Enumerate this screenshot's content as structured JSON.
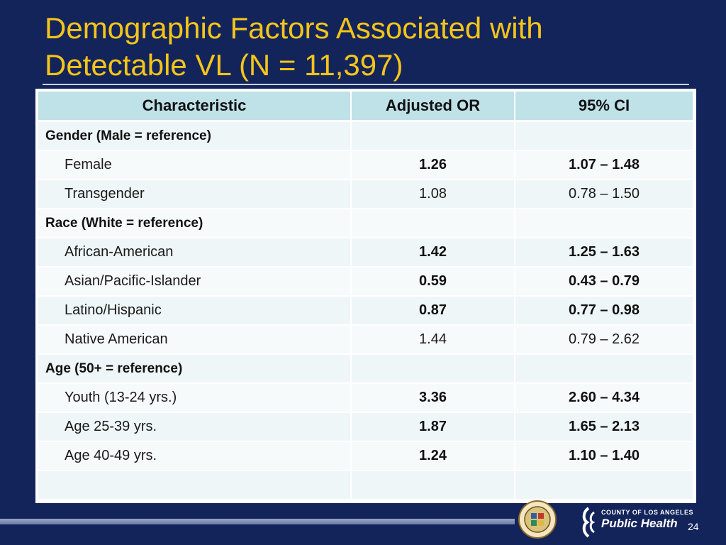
{
  "slide": {
    "title_line1": "Demographic Factors Associated with",
    "title_line2": "Detectable VL (N = 11,397)",
    "page_number": "24"
  },
  "table": {
    "headers": [
      "Characteristic",
      "Adjusted OR",
      "95% CI"
    ],
    "rows": [
      {
        "label": "Gender (Male = reference)",
        "or": "",
        "ci": ""
      },
      {
        "label": "Female",
        "or": "1.26",
        "ci": "1.07 – 1.48"
      },
      {
        "label": "Transgender",
        "or": "1.08",
        "ci": "0.78 – 1.50"
      },
      {
        "label": "Race (White = reference)",
        "or": "",
        "ci": ""
      },
      {
        "label": "African-American",
        "or": "1.42",
        "ci": "1.25 – 1.63"
      },
      {
        "label": "Asian/Pacific-Islander",
        "or": "0.59",
        "ci": "0.43 – 0.79"
      },
      {
        "label": "Latino/Hispanic",
        "or": "0.87",
        "ci": "0.77 – 0.98"
      },
      {
        "label": "Native American",
        "or": "1.44",
        "ci": "0.79 – 2.62"
      },
      {
        "label": "Age (50+ = reference)",
        "or": "",
        "ci": ""
      },
      {
        "label": "Youth (13-24 yrs.)",
        "or": "3.36",
        "ci": "2.60 – 4.34"
      },
      {
        "label": "Age 25-39 yrs.",
        "or": "1.87",
        "ci": "1.65 – 2.13"
      },
      {
        "label": "Age 40-49 yrs.",
        "or": "1.24",
        "ci": "1.10 – 1.40"
      },
      {
        "label": "",
        "or": "",
        "ci": ""
      }
    ]
  },
  "footer": {
    "logo_small": "COUNTY OF LOS ANGELES",
    "logo_big": "Public Health",
    "seal_icon": "county-seal-icon",
    "logo_icon": "public-health-logo-icon"
  }
}
